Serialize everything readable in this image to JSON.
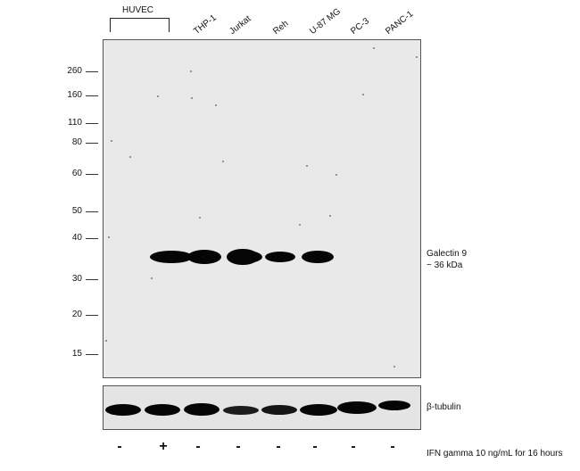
{
  "group_label": "HUVEC",
  "lanes": [
    "THP-1",
    "Jurkat",
    "Reh",
    "U-87 MG",
    "PC-3",
    "PANC-1"
  ],
  "mw_markers": [
    "260",
    "160",
    "110",
    "80",
    "60",
    "50",
    "40",
    "30",
    "20",
    "15"
  ],
  "target_label": "Galectin 9",
  "target_size": "~ 36 kDa",
  "loading_label": "β-tubulin",
  "treatment_signs": [
    "-",
    "+",
    "-",
    "-",
    "-",
    "-",
    "-",
    "-"
  ],
  "treatment_label": "IFN gamma 10 ng/mL for 16 hours"
}
